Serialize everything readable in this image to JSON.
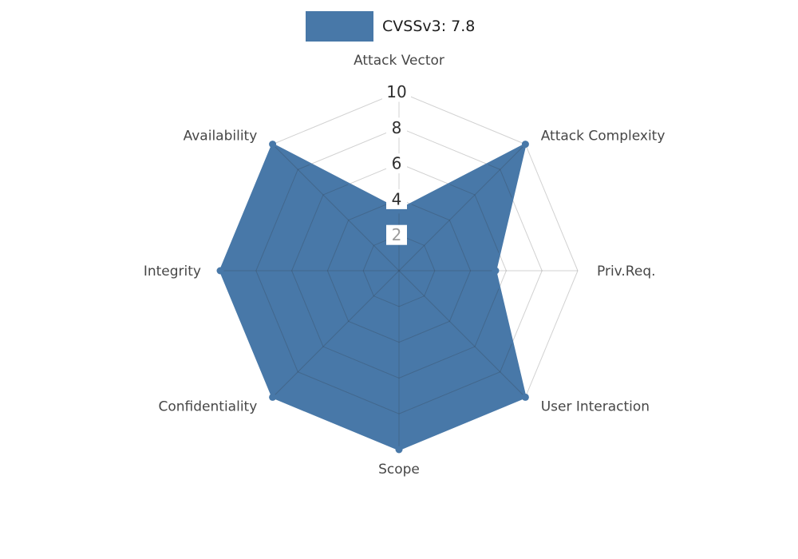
{
  "legend": {
    "label": "CVSSv3: 7.8"
  },
  "chart_data": {
    "type": "radar",
    "title": "CVSSv3: 7.8",
    "legend_position": "top-center",
    "axes": [
      "Attack Vector",
      "Attack Complexity",
      "Priv.Req.",
      "User Interaction",
      "Scope",
      "Confidentiality",
      "Integrity",
      "Availability"
    ],
    "series": [
      {
        "name": "CVSSv3: 7.8",
        "values": [
          3.4,
          10,
          5.4,
          10,
          10,
          10,
          10,
          10
        ]
      }
    ],
    "ticks": [
      2,
      4,
      6,
      8,
      10
    ],
    "range": [
      0,
      10
    ],
    "grid": true,
    "colors": {
      "series_fill": "#4878a8",
      "series_stroke": "#4878a8",
      "grid_line": "rgba(45,45,45,0.22)",
      "axis_label": "#474747",
      "tick_label": "#2e2e2e",
      "tick_label_muted": "#9b9b9b",
      "tick_box_bg": "#ffffff",
      "background": "#ffffff"
    }
  }
}
